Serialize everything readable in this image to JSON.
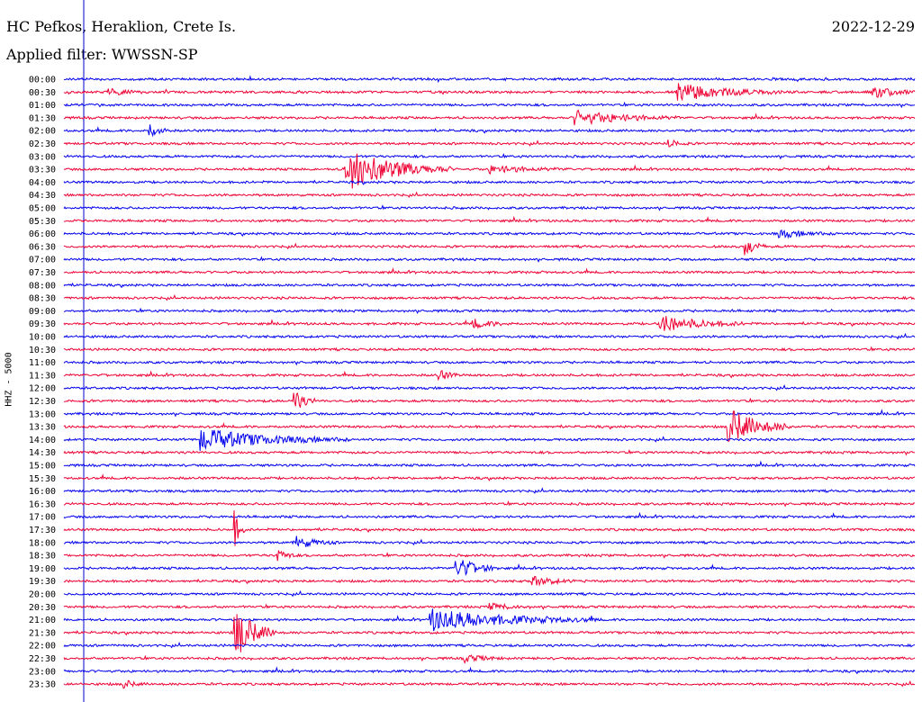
{
  "header": {
    "station": "HC Pefkos, Heraklion, Crete Is.",
    "date": "2022-12-29",
    "filter": "Applied filter: WWSSN-SP"
  },
  "channel_label": "HHZ - 5000",
  "colors": {
    "even": "#0000ee",
    "odd": "#ee0033",
    "marker": "#0000cc"
  },
  "chart_data": {
    "type": "line",
    "title": "",
    "xlabel": "",
    "ylabel": "HHZ - 5000",
    "row_labels": [
      "00:00",
      "00:30",
      "01:00",
      "01:30",
      "02:00",
      "02:30",
      "03:00",
      "03:30",
      "04:00",
      "04:30",
      "05:00",
      "05:30",
      "06:00",
      "06:30",
      "07:00",
      "07:30",
      "08:00",
      "08:30",
      "09:00",
      "09:30",
      "10:00",
      "10:30",
      "11:00",
      "11:30",
      "12:00",
      "12:30",
      "13:00",
      "13:30",
      "14:00",
      "14:30",
      "15:00",
      "15:30",
      "16:00",
      "16:30",
      "17:00",
      "17:30",
      "18:00",
      "18:30",
      "19:00",
      "19:30",
      "20:00",
      "20:30",
      "21:00",
      "21:30",
      "22:00",
      "22:30",
      "23:00",
      "23:30"
    ],
    "trace_minutes": 30,
    "events": [
      {
        "row": 1,
        "at": 0.05,
        "amp": 4,
        "dur": 0.02
      },
      {
        "row": 1,
        "at": 0.72,
        "amp": 10,
        "dur": 0.05
      },
      {
        "row": 1,
        "at": 0.95,
        "amp": 7,
        "dur": 0.02
      },
      {
        "row": 3,
        "at": 0.6,
        "amp": 8,
        "dur": 0.05
      },
      {
        "row": 4,
        "at": 0.1,
        "amp": 9,
        "dur": 0.01
      },
      {
        "row": 5,
        "at": 0.71,
        "amp": 5,
        "dur": 0.01
      },
      {
        "row": 7,
        "at": 0.33,
        "amp": 25,
        "dur": 0.05
      },
      {
        "row": 7,
        "at": 0.5,
        "amp": 4,
        "dur": 0.04
      },
      {
        "row": 12,
        "at": 0.84,
        "amp": 4,
        "dur": 0.03
      },
      {
        "row": 13,
        "at": 0.8,
        "amp": 12,
        "dur": 0.01
      },
      {
        "row": 19,
        "at": 0.7,
        "amp": 10,
        "dur": 0.04
      },
      {
        "row": 19,
        "at": 0.48,
        "amp": 5,
        "dur": 0.02
      },
      {
        "row": 23,
        "at": 0.44,
        "amp": 7,
        "dur": 0.01
      },
      {
        "row": 25,
        "at": 0.27,
        "amp": 14,
        "dur": 0.01
      },
      {
        "row": 27,
        "at": 0.78,
        "amp": 22,
        "dur": 0.03
      },
      {
        "row": 28,
        "at": 0.16,
        "amp": 12,
        "dur": 0.07
      },
      {
        "row": 35,
        "at": 0.2,
        "amp": 22,
        "dur": 0.005
      },
      {
        "row": 36,
        "at": 0.27,
        "amp": 8,
        "dur": 0.02
      },
      {
        "row": 37,
        "at": 0.25,
        "amp": 8,
        "dur": 0.01
      },
      {
        "row": 38,
        "at": 0.46,
        "amp": 14,
        "dur": 0.02
      },
      {
        "row": 39,
        "at": 0.55,
        "amp": 6,
        "dur": 0.02
      },
      {
        "row": 41,
        "at": 0.5,
        "amp": 4,
        "dur": 0.02
      },
      {
        "row": 42,
        "at": 0.43,
        "amp": 12,
        "dur": 0.08
      },
      {
        "row": 43,
        "at": 0.2,
        "amp": 32,
        "dur": 0.02
      },
      {
        "row": 45,
        "at": 0.47,
        "amp": 4,
        "dur": 0.02
      },
      {
        "row": 47,
        "at": 0.07,
        "amp": 5,
        "dur": 0.01
      }
    ]
  }
}
